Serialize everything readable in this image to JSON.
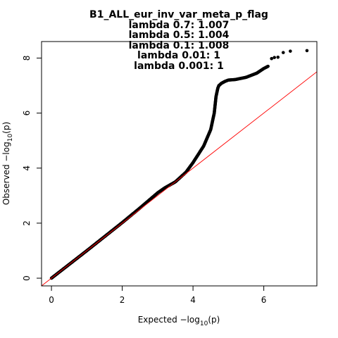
{
  "chart_data": {
    "type": "scatter",
    "title": "B1_ALL_eur_inv_var_meta_p_flag",
    "subtitles": [
      "lambda 0.7: 1.007",
      "lambda 0.5: 1.004",
      "lambda 0.1: 1.008",
      "lambda 0.01: 1",
      "lambda 0.001: 1"
    ],
    "xlabel": {
      "prefix": "Expected  −log",
      "subscript": "10",
      "suffix": "(p)"
    },
    "ylabel": {
      "prefix": "Observed  −log",
      "subscript": "10",
      "suffix": "(p)"
    },
    "xlim": [
      -0.28,
      7.5
    ],
    "ylim": [
      -0.28,
      8.6
    ],
    "x_ticks": [
      0,
      2,
      4,
      6
    ],
    "y_ticks": [
      0,
      2,
      4,
      6,
      8
    ],
    "reference_line": {
      "type": "y=x",
      "color": "#ff0000"
    },
    "point_color": "#000000",
    "curve_x": [
      0,
      1.0,
      2.0,
      2.5,
      3.0,
      3.2,
      3.5,
      3.8,
      4.0,
      4.3,
      4.5,
      4.6,
      4.65,
      4.7,
      4.73,
      4.75,
      4.8,
      4.9,
      5.0,
      5.2,
      5.5,
      5.8,
      6.0,
      6.12
    ],
    "curve_y": [
      0,
      1.0,
      2.02,
      2.55,
      3.1,
      3.28,
      3.5,
      3.85,
      4.2,
      4.8,
      5.4,
      6.0,
      6.6,
      6.9,
      7.0,
      7.02,
      7.08,
      7.15,
      7.2,
      7.22,
      7.3,
      7.45,
      7.62,
      7.7
    ],
    "tail_points_x": [
      6.22,
      6.3,
      6.4,
      6.55,
      6.75,
      7.22
    ],
    "tail_points_y": [
      7.98,
      8.02,
      8.03,
      8.2,
      8.25,
      8.27
    ]
  }
}
